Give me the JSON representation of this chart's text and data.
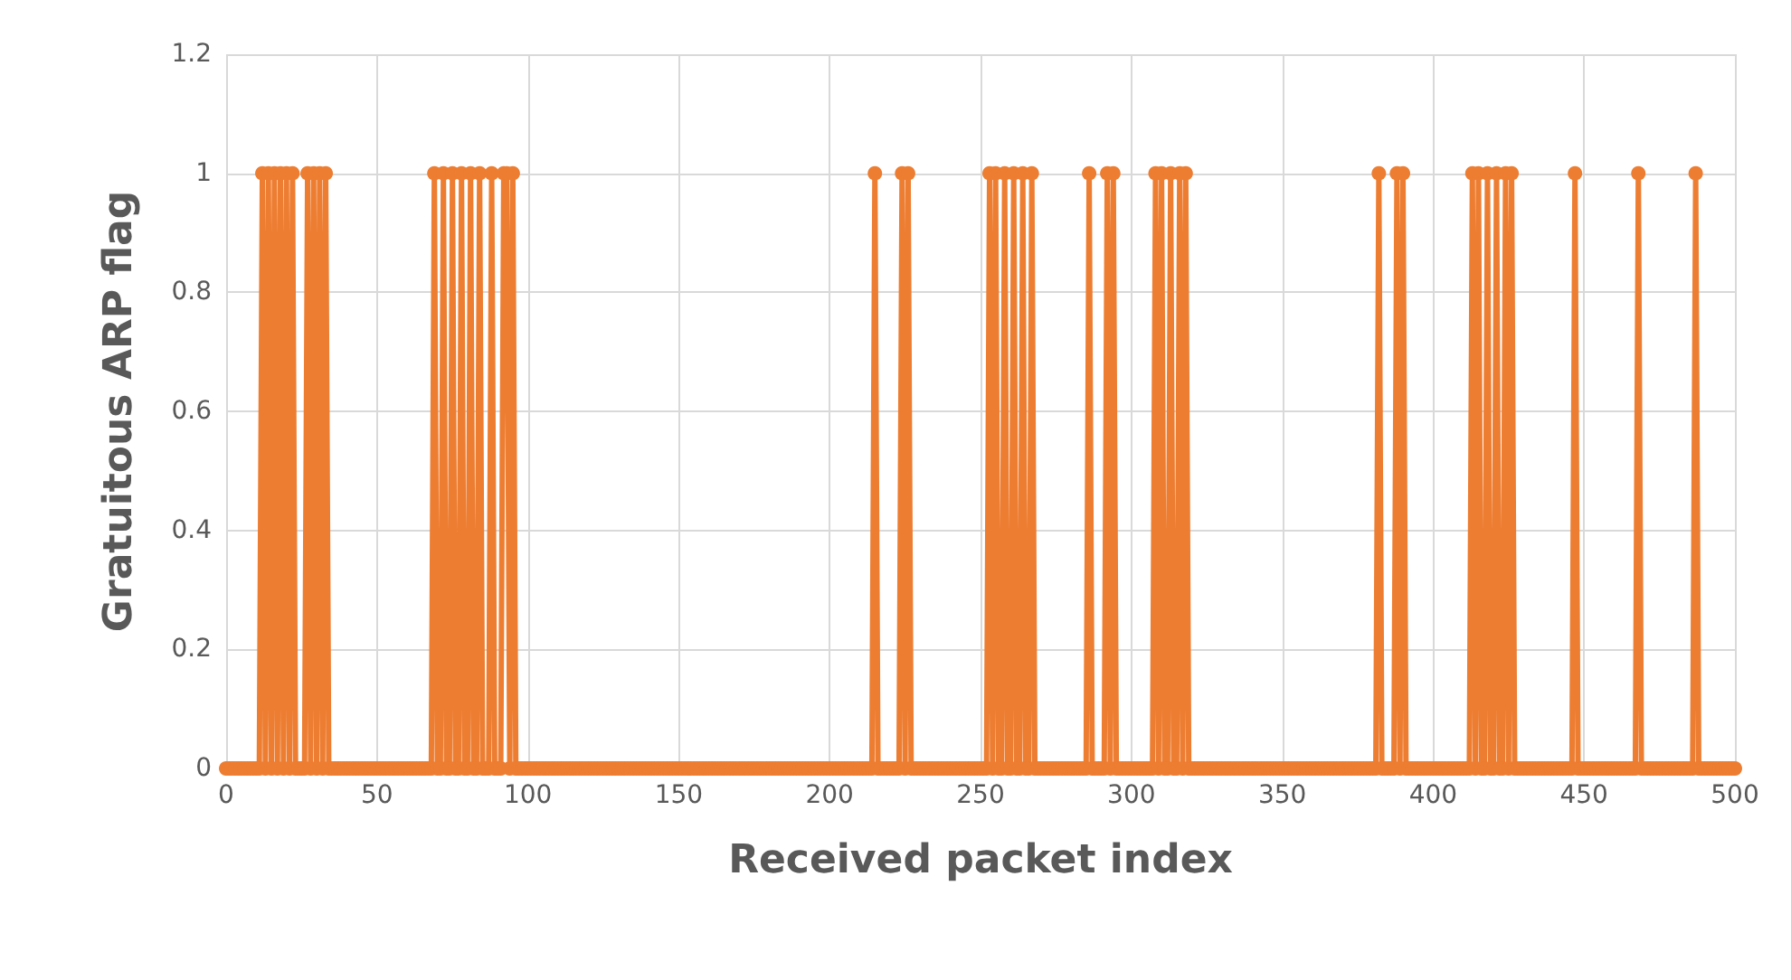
{
  "chart_data": {
    "type": "line",
    "xlabel": "Received packet index",
    "ylabel": "Gratuitous ARP flag",
    "x": [
      0,
      1,
      2,
      3,
      4,
      5,
      6,
      7,
      8,
      9,
      10,
      11,
      12,
      13,
      14,
      15,
      16,
      17,
      18,
      19,
      20,
      21,
      22,
      23,
      24,
      25,
      26,
      27,
      28,
      29,
      30,
      31,
      32,
      33,
      34,
      35,
      36,
      37,
      38,
      39,
      40,
      41,
      42,
      43,
      44,
      45,
      46,
      47,
      48,
      49,
      50,
      51,
      52,
      53,
      54,
      55,
      56,
      57,
      58,
      59,
      60,
      61,
      62,
      63,
      64,
      65,
      66,
      67,
      68,
      69,
      70,
      71,
      72,
      73,
      74,
      75,
      76,
      77,
      78,
      79,
      80,
      81,
      82,
      83,
      84,
      85,
      86,
      87,
      88,
      89,
      90,
      91,
      92,
      93,
      94,
      95,
      96,
      97,
      98,
      99,
      100,
      101,
      102,
      103,
      104,
      105,
      106,
      107,
      108,
      109,
      110,
      111,
      112,
      113,
      114,
      115,
      116,
      117,
      118,
      119,
      120,
      121,
      122,
      123,
      124,
      125,
      126,
      127,
      128,
      129,
      130,
      131,
      132,
      133,
      134,
      135,
      136,
      137,
      138,
      139,
      140,
      141,
      142,
      143,
      144,
      145,
      146,
      147,
      148,
      149,
      150,
      151,
      152,
      153,
      154,
      155,
      156,
      157,
      158,
      159,
      160,
      161,
      162,
      163,
      164,
      165,
      166,
      167,
      168,
      169,
      170,
      171,
      172,
      173,
      174,
      175,
      176,
      177,
      178,
      179,
      180,
      181,
      182,
      183,
      184,
      185,
      186,
      187,
      188,
      189,
      190,
      191,
      192,
      193,
      194,
      195,
      196,
      197,
      198,
      199,
      200,
      201,
      202,
      203,
      204,
      205,
      206,
      207,
      208,
      209,
      210,
      211,
      212,
      213,
      214,
      215,
      216,
      217,
      218,
      219,
      220,
      221,
      222,
      223,
      224,
      225,
      226,
      227,
      228,
      229,
      230,
      231,
      232,
      233,
      234,
      235,
      236,
      237,
      238,
      239,
      240,
      241,
      242,
      243,
      244,
      245,
      246,
      247,
      248,
      249,
      250,
      251,
      252,
      253,
      254,
      255,
      256,
      257,
      258,
      259,
      260,
      261,
      262,
      263,
      264,
      265,
      266,
      267,
      268,
      269,
      270,
      271,
      272,
      273,
      274,
      275,
      276,
      277,
      278,
      279,
      280,
      281,
      282,
      283,
      284,
      285,
      286,
      287,
      288,
      289,
      290,
      291,
      292,
      293,
      294,
      295,
      296,
      297,
      298,
      299,
      300,
      301,
      302,
      303,
      304,
      305,
      306,
      307,
      308,
      309,
      310,
      311,
      312,
      313,
      314,
      315,
      316,
      317,
      318,
      319,
      320,
      321,
      322,
      323,
      324,
      325,
      326,
      327,
      328,
      329,
      330,
      331,
      332,
      333,
      334,
      335,
      336,
      337,
      338,
      339,
      340,
      341,
      342,
      343,
      344,
      345,
      346,
      347,
      348,
      349,
      350,
      351,
      352,
      353,
      354,
      355,
      356,
      357,
      358,
      359,
      360,
      361,
      362,
      363,
      364,
      365,
      366,
      367,
      368,
      369,
      370,
      371,
      372,
      373,
      374,
      375,
      376,
      377,
      378,
      379,
      380,
      381,
      382,
      383,
      384,
      385,
      386,
      387,
      388,
      389,
      390,
      391,
      392,
      393,
      394,
      395,
      396,
      397,
      398,
      399,
      400,
      401,
      402,
      403,
      404,
      405,
      406,
      407,
      408,
      409,
      410,
      411,
      412,
      413,
      414,
      415,
      416,
      417,
      418,
      419,
      420,
      421,
      422,
      423,
      424,
      425,
      426,
      427,
      428,
      429,
      430,
      431,
      432,
      433,
      434,
      435,
      436,
      437,
      438,
      439,
      440,
      441,
      442,
      443,
      444,
      445,
      446,
      447,
      448,
      449,
      450,
      451,
      452,
      453,
      454,
      455,
      456,
      457,
      458,
      459,
      460,
      461,
      462,
      463,
      464,
      465,
      466,
      467,
      468,
      469,
      470,
      471,
      472,
      473,
      474,
      475,
      476,
      477,
      478,
      479,
      480,
      481,
      482,
      483,
      484,
      485,
      486,
      487,
      488,
      489,
      490,
      491,
      492,
      493,
      494,
      495,
      496,
      497,
      498,
      499,
      500
    ],
    "series": [
      {
        "color": "#ed7d31",
        "values": [
          0,
          0,
          0,
          0,
          0,
          0,
          0,
          0,
          0,
          0,
          0,
          0,
          1,
          0,
          1,
          0,
          1,
          0,
          1,
          0,
          1,
          0,
          1,
          0,
          0,
          0,
          0,
          1,
          0,
          1,
          0,
          1,
          0,
          1,
          0,
          0,
          0,
          0,
          0,
          0,
          0,
          0,
          0,
          0,
          0,
          0,
          0,
          0,
          0,
          0,
          0,
          0,
          0,
          0,
          0,
          0,
          0,
          0,
          0,
          0,
          0,
          0,
          0,
          0,
          0,
          0,
          0,
          0,
          0,
          1,
          0,
          0,
          1,
          0,
          0,
          1,
          0,
          0,
          1,
          0,
          0,
          1,
          0,
          0,
          1,
          0,
          0,
          0,
          1,
          0,
          0,
          0,
          1,
          1,
          0,
          1,
          0,
          0,
          0,
          0,
          0,
          0,
          0,
          0,
          0,
          0,
          0,
          0,
          0,
          0,
          0,
          0,
          0,
          0,
          0,
          0,
          0,
          0,
          0,
          0,
          0,
          0,
          0,
          0,
          0,
          0,
          0,
          0,
          0,
          0,
          0,
          0,
          0,
          0,
          0,
          0,
          0,
          0,
          0,
          0,
          0,
          0,
          0,
          0,
          0,
          0,
          0,
          0,
          0,
          0,
          0,
          0,
          0,
          0,
          0,
          0,
          0,
          0,
          0,
          0,
          0,
          0,
          0,
          0,
          0,
          0,
          0,
          0,
          0,
          0,
          0,
          0,
          0,
          0,
          0,
          0,
          0,
          0,
          0,
          0,
          0,
          0,
          0,
          0,
          0,
          0,
          0,
          0,
          0,
          0,
          0,
          0,
          0,
          0,
          0,
          0,
          0,
          0,
          0,
          0,
          0,
          0,
          0,
          0,
          0,
          0,
          0,
          0,
          0,
          0,
          0,
          0,
          0,
          0,
          0,
          1,
          0,
          0,
          0,
          0,
          0,
          0,
          0,
          0,
          1,
          0,
          1,
          0,
          0,
          0,
          0,
          0,
          0,
          0,
          0,
          0,
          0,
          0,
          0,
          0,
          0,
          0,
          0,
          0,
          0,
          0,
          0,
          0,
          0,
          0,
          0,
          0,
          0,
          1,
          0,
          1,
          0,
          0,
          1,
          0,
          0,
          1,
          0,
          0,
          1,
          0,
          0,
          1,
          0,
          0,
          0,
          0,
          0,
          0,
          0,
          0,
          0,
          0,
          0,
          0,
          0,
          0,
          0,
          0,
          0,
          0,
          1,
          0,
          0,
          0,
          0,
          0,
          1,
          0,
          1,
          0,
          0,
          0,
          0,
          0,
          0,
          0,
          0,
          0,
          0,
          0,
          0,
          0,
          1,
          0,
          1,
          0,
          0,
          1,
          0,
          0,
          1,
          0,
          1,
          0,
          0,
          0,
          0,
          0,
          0,
          0,
          0,
          0,
          0,
          0,
          0,
          0,
          0,
          0,
          0,
          0,
          0,
          0,
          0,
          0,
          0,
          0,
          0,
          0,
          0,
          0,
          0,
          0,
          0,
          0,
          0,
          0,
          0,
          0,
          0,
          0,
          0,
          0,
          0,
          0,
          0,
          0,
          0,
          0,
          0,
          0,
          0,
          0,
          0,
          0,
          0,
          0,
          0,
          0,
          0,
          0,
          0,
          0,
          0,
          0,
          0,
          0,
          1,
          0,
          0,
          0,
          0,
          0,
          1,
          0,
          1,
          0,
          0,
          0,
          0,
          0,
          0,
          0,
          0,
          0,
          0,
          0,
          0,
          0,
          0,
          0,
          0,
          0,
          0,
          0,
          0,
          0,
          0,
          1,
          0,
          1,
          0,
          0,
          1,
          0,
          0,
          1,
          0,
          0,
          1,
          0,
          1,
          0,
          0,
          0,
          0,
          0,
          0,
          0,
          0,
          0,
          0,
          0,
          0,
          0,
          0,
          0,
          0,
          0,
          0,
          0,
          0,
          1,
          0,
          0,
          0,
          0,
          0,
          0,
          0,
          0,
          0,
          0,
          0,
          0,
          0,
          0,
          0,
          0,
          0,
          0,
          0,
          0,
          1,
          0,
          0,
          0,
          0,
          0,
          0,
          0,
          0,
          0,
          0,
          0,
          0,
          0,
          0,
          0,
          0,
          0,
          0,
          1,
          0,
          0,
          0,
          0,
          0,
          0,
          0,
          0,
          0,
          0,
          0,
          0,
          0
        ]
      }
    ],
    "xlim": [
      0,
      500
    ],
    "xticks": [
      0,
      50,
      100,
      150,
      200,
      250,
      300,
      350,
      400,
      450,
      500
    ],
    "ylim": [
      0,
      1.2
    ],
    "yticks": [
      0,
      0.2,
      0.4,
      0.6,
      0.8,
      1,
      1.2
    ],
    "grid": true,
    "marker": "circle",
    "line_style": "solid"
  }
}
